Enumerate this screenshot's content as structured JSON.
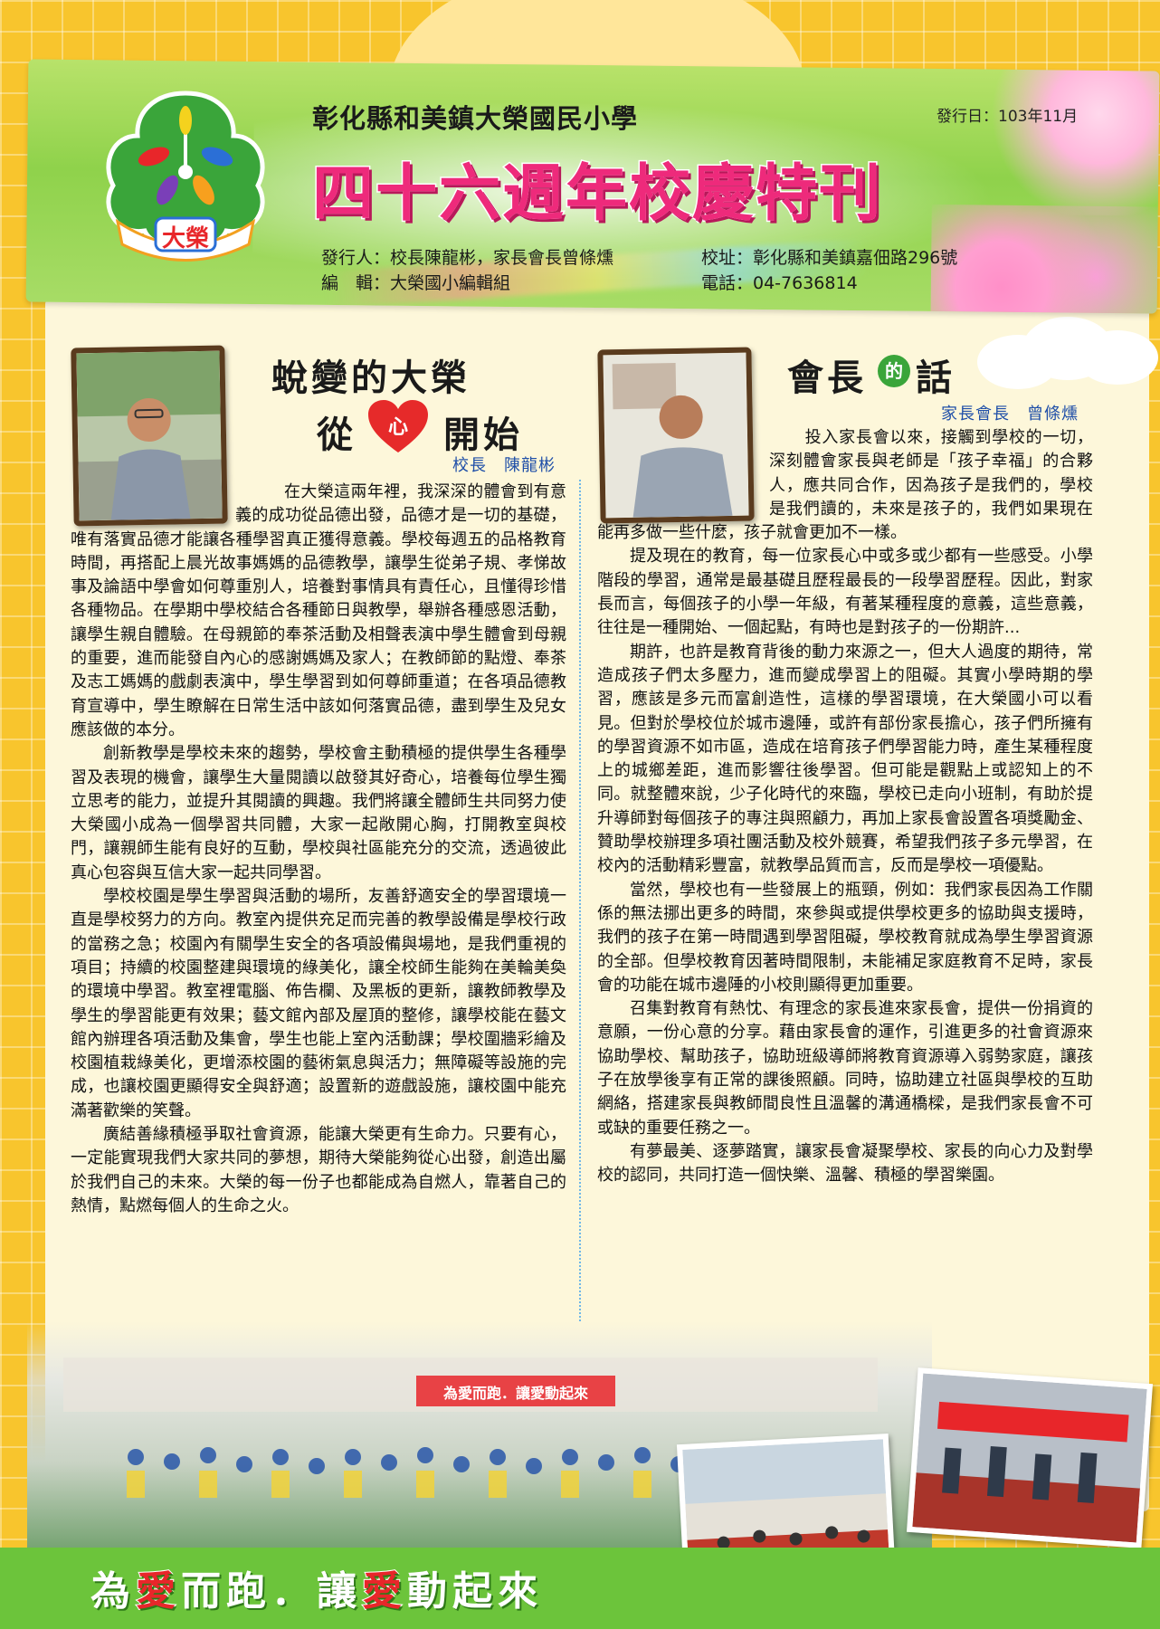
{
  "header": {
    "school_name": "彰化縣和美鎮大榮國民小學",
    "issue_date": "發行日：103年11月",
    "title": "四十六週年校慶特刊",
    "logo_text": "大榮",
    "publisher": "發行人：校長陳龍彬，家長會長曾條燻",
    "editor": "編　輯：大榮國小編輯組",
    "address": "校址：彰化縣和美鎮嘉佃路296號",
    "phone": "電話：04-7636814"
  },
  "left_article": {
    "title_line1": "蛻變的大榮",
    "title_line2_a": "從",
    "title_heart": "心",
    "title_line2_b": "開始",
    "byline": "校長　陳龍彬",
    "paragraphs": [
      "在大榮這兩年裡，我深深的體會到有意義的成功從品德出發，品德才是一切的基礎，唯有落實品德才能讓各種學習真正獲得意義。學校每週五的品格教育時間，再搭配上晨光故事媽媽的品德教學，讓學生從弟子規、孝悌故事及論語中學會如何尊重別人，培養對事情具有責任心，且懂得珍惜各種物品。在學期中學校結合各種節日與教學，舉辦各種感恩活動，讓學生親自體驗。在母親節的奉茶活動及相聲表演中學生體會到母親的重要，進而能發自內心的感謝媽媽及家人；在教師節的點燈、奉茶及志工媽媽的戲劇表演中，學生學習到如何尊師重道；在各項品德教育宣導中，學生瞭解在日常生活中該如何落實品德，盡到學生及兒女應該做的本分。",
      "創新教學是學校未來的趨勢，學校會主動積極的提供學生各種學習及表現的機會，讓學生大量閱讀以啟發其好奇心，培養每位學生獨立思考的能力，並提升其閱讀的興趣。我們將讓全體師生共同努力使大榮國小成為一個學習共同體，大家一起敞開心胸，打開教室與校門，讓親師生能有良好的互動，學校與社區能充分的交流，透過彼此真心包容與互信大家一起共同學習。",
      "學校校園是學生學習與活動的場所，友善舒適安全的學習環境一直是學校努力的方向。教室內提供充足而完善的教學設備是學校行政的當務之急；校園內有關學生安全的各項設備與場地，是我們重視的項目；持續的校園整建與環境的綠美化，讓全校師生能夠在美輪美奐的環境中學習。教室裡電腦、佈告欄、及黑板的更新，讓教師教學及學生的學習能更有效果；藝文館內部及屋頂的整修，讓學校能在藝文館內辦理各項活動及集會，學生也能上室內活動課；學校圍牆彩繪及校園植栽綠美化，更增添校園的藝術氣息與活力；無障礙等設施的完成，也讓校園更顯得安全與舒適；設置新的遊戲設施，讓校園中能充滿著歡樂的笑聲。",
      "廣結善緣積極爭取社會資源，能讓大榮更有生命力。只要有心，一定能實現我們大家共同的夢想，期待大榮能夠從心出發，創造出屬於我們自己的未來。大榮的每一份子也都能成為自燃人，靠著自己的熱情，點燃每個人的生命之火。"
    ]
  },
  "right_article": {
    "title_a": "會長",
    "title_circle": "的",
    "title_b": "話",
    "byline": "家長會長　曾條燻",
    "paragraphs": [
      "投入家長會以來，接觸到學校的一切，深刻體會家長與老師是「孩子幸福」的合夥人，應共同合作，因為孩子是我們的，學校是我們讀的，未來是孩子的，我們如果現在能再多做一些什麼，孩子就會更加不一樣。",
      "提及現在的教育，每一位家長心中或多或少都有一些感受。小學階段的學習，通常是最基礎且歷程最長的一段學習歷程。因此，對家長而言，每個孩子的小學一年級，有著某種程度的意義，這些意義，往往是一種開始、一個起點，有時也是對孩子的一份期許...",
      "期許，也許是教育背後的動力來源之一，但大人過度的期待，常造成孩子們太多壓力，進而變成學習上的阻礙。其實小學時期的學習，應該是多元而富創造性，這樣的學習環境，在大榮國小可以看見。但對於學校位於城市邊陲，或許有部份家長擔心，孩子們所擁有的學習資源不如市區，造成在培育孩子們學習能力時，產生某種程度上的城鄉差距，進而影響往後學習。但可能是觀點上或認知上的不同。就整體來說，少子化時代的來臨，學校已走向小班制，有助於提升導師對每個孩子的專注與照顧力，再加上家長會設置各項獎勵金、贊助學校辦理多項社團活動及校外競賽，希望我們孩子多元學習，在校內的活動精彩豐富，就教學品質而言，反而是學校一項優點。",
      "當然，學校也有一些發展上的瓶頸，例如：我們家長因為工作關係的無法挪出更多的時間，來參與或提供學校更多的協助與支援時，我們的孩子在第一時間遇到學習阻礙，學校教育就成為學生學習資源的全部。但學校教育因著時間限制，未能補足家庭教育不足時，家長會的功能在城市邊陲的小校則顯得更加重要。",
      "召集對教育有熱忱、有理念的家長進來家長會，提供一份捐資的意願，一份心意的分享。藉由家長會的運作，引進更多的社會資源來協助學校、幫助孩子，協助班級導師將教育資源導入弱勢家庭，讓孩子在放學後享有正常的課後照顧。同時，協助建立社區與學校的互助網絡，搭建家長與教師間良性且溫馨的溝通橋樑，是我們家長會不可或缺的重要任務之一。",
      "有夢最美、逐夢踏實，讓家長會凝聚學校、家長的向心力及對學校的認同，共同打造一個快樂、溫馨、積極的學習樂園。"
    ]
  },
  "bottom": {
    "banner_text": "為愛而跑．讓愛動起來",
    "slogan_a": "為",
    "slogan_love1": "愛",
    "slogan_b": "而跑．讓",
    "slogan_love2": "愛",
    "slogan_c": "動起來"
  },
  "colors": {
    "title_pink": "#ee2a7b",
    "byline_blue": "#1f4fa8",
    "paper": "#fdf7da",
    "background_yellow": "#f8c52d",
    "strip_green": "#6cc43b"
  }
}
